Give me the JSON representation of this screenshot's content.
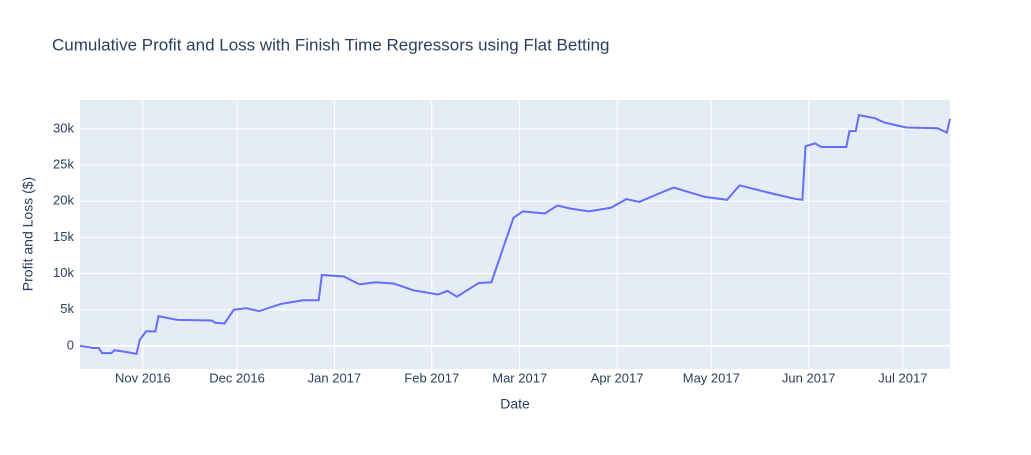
{
  "chart_data": {
    "type": "line",
    "title": "Cumulative Profit and Loss with Finish Time Regressors using Flat Betting",
    "x_label": "Date",
    "y_label": "Profit and Loss ($)",
    "x": [
      "2016-10-12",
      "2016-10-15",
      "2016-10-16",
      "2016-10-18",
      "2016-10-19",
      "2016-10-22",
      "2016-10-23",
      "2016-10-26",
      "2016-10-30",
      "2016-10-31",
      "2016-11-02",
      "2016-11-05",
      "2016-11-06",
      "2016-11-12",
      "2016-11-23",
      "2016-11-24",
      "2016-11-27",
      "2016-11-30",
      "2016-12-04",
      "2016-12-08",
      "2016-12-15",
      "2016-12-22",
      "2016-12-27",
      "2016-12-28",
      "2017-01-04",
      "2017-01-09",
      "2017-01-14",
      "2017-01-20",
      "2017-01-26",
      "2017-02-03",
      "2017-02-06",
      "2017-02-09",
      "2017-02-16",
      "2017-02-20",
      "2017-02-27",
      "2017-03-02",
      "2017-03-09",
      "2017-03-13",
      "2017-03-17",
      "2017-03-23",
      "2017-03-30",
      "2017-04-04",
      "2017-04-08",
      "2017-04-14",
      "2017-04-19",
      "2017-04-29",
      "2017-05-06",
      "2017-05-10",
      "2017-05-20",
      "2017-05-28",
      "2017-05-30",
      "2017-05-31",
      "2017-06-03",
      "2017-06-05",
      "2017-06-13",
      "2017-06-14",
      "2017-06-16",
      "2017-06-17",
      "2017-06-22",
      "2017-06-25",
      "2017-07-02",
      "2017-07-12",
      "2017-07-15",
      "2017-07-16"
    ],
    "series": [
      {
        "name": "Profit and Loss",
        "color": "#636efa",
        "values": [
          0,
          -200,
          -300,
          -300,
          -1000,
          -1000,
          -600,
          -800,
          -1100,
          800,
          2000,
          2000,
          4100,
          3600,
          3500,
          3200,
          3100,
          5000,
          5200,
          4800,
          5800,
          6300,
          6300,
          9800,
          9600,
          8500,
          8800,
          8600,
          7700,
          7100,
          7600,
          6800,
          8700,
          8800,
          17700,
          18600,
          18300,
          19400,
          19000,
          18600,
          19100,
          20300,
          19900,
          21000,
          21900,
          20600,
          20200,
          22200,
          21100,
          20300,
          20200,
          27600,
          28000,
          27500,
          27500,
          29700,
          29700,
          31900,
          31500,
          30900,
          30200,
          30100,
          29500,
          31400
        ]
      }
    ],
    "xlim": [
      "2016-10-12",
      "2017-07-16"
    ],
    "xticks": [
      {
        "value": "2016-11-01",
        "label": "Nov 2016"
      },
      {
        "value": "2016-12-01",
        "label": "Dec 2016"
      },
      {
        "value": "2017-01-01",
        "label": "Jan 2017"
      },
      {
        "value": "2017-02-01",
        "label": "Feb 2017"
      },
      {
        "value": "2017-03-01",
        "label": "Mar 2017"
      },
      {
        "value": "2017-04-01",
        "label": "Apr 2017"
      },
      {
        "value": "2017-05-01",
        "label": "May 2017"
      },
      {
        "value": "2017-06-01",
        "label": "Jun 2017"
      },
      {
        "value": "2017-07-01",
        "label": "Jul 2017"
      }
    ],
    "ylim": [
      -3200,
      34000
    ],
    "yticks": [
      0,
      {
        "value": 5000,
        "label": "5k"
      },
      {
        "value": 10000,
        "label": "10k"
      },
      {
        "value": 15000,
        "label": "15k"
      },
      {
        "value": 20000,
        "label": "20k"
      },
      {
        "value": 25000,
        "label": "25k"
      },
      {
        "value": 30000,
        "label": "30k"
      }
    ],
    "grid": true
  }
}
